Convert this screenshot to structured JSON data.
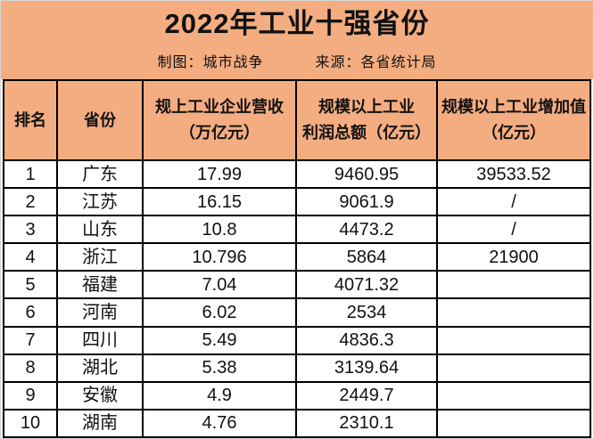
{
  "colors": {
    "background_orange": "#F4AD81",
    "row_background": "#FFFFFF",
    "table_border": "#000000",
    "text": "#111111",
    "outer_border": "#D6D6D6"
  },
  "header": {
    "title": "2022年工业十强省份",
    "credit": "制图：城市战争",
    "source": "来源：各省统计局"
  },
  "table": {
    "column_labels": [
      "排名",
      "省份",
      "规上工业企业营收\n（万亿元）",
      "规模以上工业\n利润总额（亿元）",
      "规模以上工业增加值\n（亿元）"
    ]
  },
  "chart_data": {
    "type": "table",
    "title": "2022年工业十强省份",
    "columns": [
      "排名",
      "省份",
      "规上工业企业营收（万亿元）",
      "规模以上工业利润总额（亿元）",
      "规模以上工业增加值（亿元）"
    ],
    "rows": [
      {
        "rank": "1",
        "province": "广东",
        "revenue": "17.99",
        "profit": "9460.95",
        "added_value": "39533.52"
      },
      {
        "rank": "2",
        "province": "江苏",
        "revenue": "16.15",
        "profit": "9061.9",
        "added_value": "/"
      },
      {
        "rank": "3",
        "province": "山东",
        "revenue": "10.8",
        "profit": "4473.2",
        "added_value": "/"
      },
      {
        "rank": "4",
        "province": "浙江",
        "revenue": "10.796",
        "profit": "5864",
        "added_value": "21900"
      },
      {
        "rank": "5",
        "province": "福建",
        "revenue": "7.04",
        "profit": "4071.32",
        "added_value": ""
      },
      {
        "rank": "6",
        "province": "河南",
        "revenue": "6.02",
        "profit": "2534",
        "added_value": ""
      },
      {
        "rank": "7",
        "province": "四川",
        "revenue": "5.49",
        "profit": "4836.3",
        "added_value": ""
      },
      {
        "rank": "8",
        "province": "湖北",
        "revenue": "5.38",
        "profit": "3139.64",
        "added_value": ""
      },
      {
        "rank": "9",
        "province": "安徽",
        "revenue": "4.9",
        "profit": "2449.7",
        "added_value": ""
      },
      {
        "rank": "10",
        "province": "湖南",
        "revenue": "4.76",
        "profit": "2310.1",
        "added_value": ""
      }
    ]
  }
}
